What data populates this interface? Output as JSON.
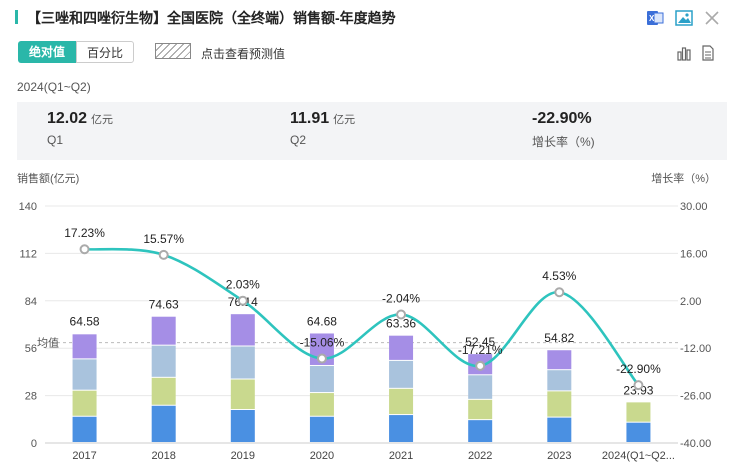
{
  "header": {
    "title": "【三唑和四唑衍生物】全国医院（全终端）销售额-年度趋势",
    "icons": [
      "excel-icon",
      "image-icon",
      "close-icon"
    ]
  },
  "toolbar": {
    "absolute_label": "绝对值",
    "percent_label": "百分比",
    "forecast_label": "点击查看预测值",
    "icons": [
      "bar-chart-icon",
      "table-icon"
    ]
  },
  "period": "2024(Q1~Q2)",
  "stats": [
    {
      "value": "12.02",
      "unit": "亿元",
      "label": "Q1"
    },
    {
      "value": "11.91",
      "unit": "亿元",
      "label": "Q2"
    },
    {
      "value": "-22.90%",
      "unit": "",
      "label": "增长率（%)"
    }
  ],
  "colors": {
    "accent": "#2ab7a9",
    "segments": [
      "#4a90e2",
      "#c9d98e",
      "#a9c3dd",
      "#a58ee6"
    ],
    "line": "#2ec4be"
  },
  "chart_data": {
    "type": "bar",
    "ylabel": "销售额(亿元)",
    "y2label": "增长率（%）",
    "ylim": [
      0,
      140
    ],
    "y2lim": [
      -40,
      30
    ],
    "yticks": [
      "0",
      "28",
      "56",
      "84",
      "112",
      "140"
    ],
    "y2ticks": [
      "-40.00",
      "-26.00",
      "-12.00",
      "2.00",
      "16.00",
      "30.00"
    ],
    "categories": [
      "2017",
      "2018",
      "2019",
      "2020",
      "2021",
      "2022",
      "2023",
      "2024(Q1~Q2..."
    ],
    "totals": [
      64.58,
      74.63,
      76.14,
      64.68,
      63.36,
      52.45,
      54.82,
      23.93
    ],
    "total_labels": [
      "64.58",
      "74.63",
      "76.14",
      "64.68",
      "63.36",
      "52.45",
      "54.82",
      "23.93"
    ],
    "segments": [
      [
        15.5,
        15.4,
        18.5,
        14.8
      ],
      [
        22,
        16.5,
        19,
        17.1
      ],
      [
        19.5,
        18,
        19.5,
        19.1
      ],
      [
        15.5,
        14,
        16,
        19.2
      ],
      [
        16.5,
        15.5,
        16.5,
        14.9
      ],
      [
        13.5,
        12,
        14.5,
        12.5
      ],
      [
        15,
        15.5,
        12.5,
        11.8
      ],
      [
        12,
        12,
        0,
        0
      ]
    ],
    "growth": [
      17.23,
      15.57,
      2.03,
      -15.06,
      -2.04,
      -17.21,
      4.53,
      -22.9
    ],
    "growth_labels": [
      "17.23%",
      "15.57%",
      "2.03%",
      "-15.06%",
      "-2.04%",
      "-17.21%",
      "4.53%",
      "-22.90%"
    ],
    "average_label": "均值",
    "average_value": 59.3,
    "grid": true
  }
}
